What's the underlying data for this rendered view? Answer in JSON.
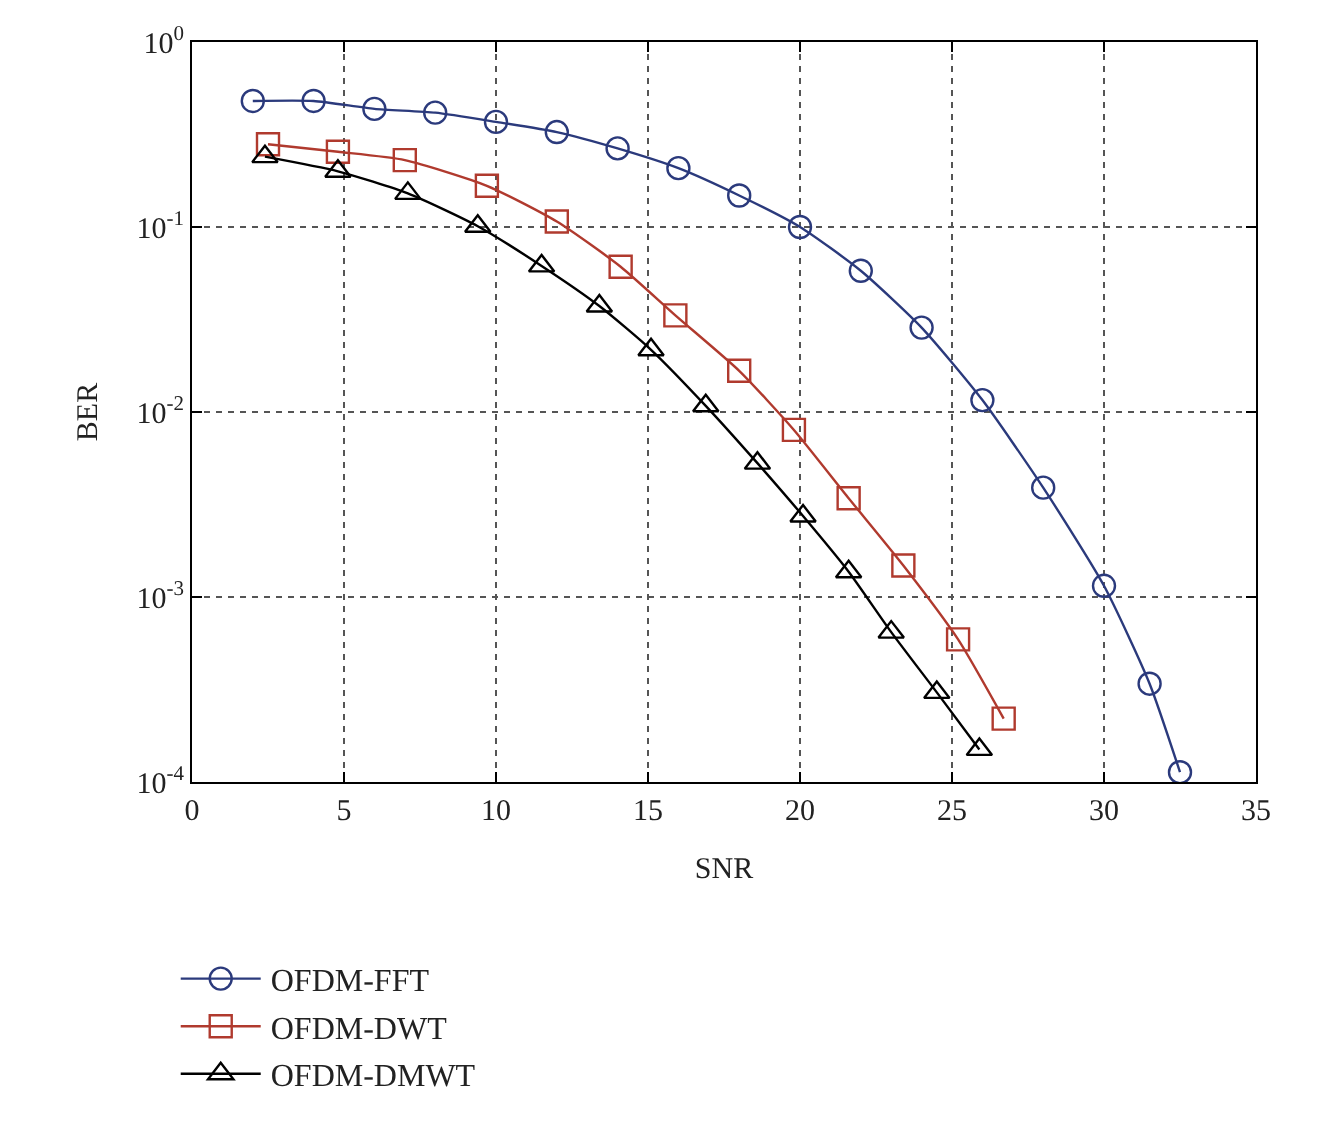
{
  "chart_data": {
    "type": "line",
    "xlabel": "SNR",
    "ylabel": "BER",
    "log": "y",
    "grid": true,
    "legend": "bottom left",
    "line_style": "solid",
    "xlim": [
      0,
      35
    ],
    "xticks": [
      0,
      5,
      10,
      15,
      20,
      25,
      30,
      35
    ],
    "ylim": [
      0.0001,
      1
    ],
    "yticks": [
      {
        "value": 0.0001,
        "label": "10$^{-4}$"
      },
      {
        "value": 0.001,
        "label": "10$^{-3}$"
      },
      {
        "value": 0.01,
        "label": "10$^{-2}$"
      },
      {
        "value": 0.1,
        "label": "10$^{-1}$"
      },
      {
        "value": 1,
        "label": "10$^{0}$"
      }
    ],
    "series": [
      {
        "name": "OFDM-FFT",
        "color": "#2b3a7c",
        "marker": "circle",
        "x": [
          2,
          4,
          6,
          8,
          10,
          12,
          14,
          16,
          18,
          20,
          22,
          24,
          26,
          28,
          30,
          31.5,
          32.5
        ],
        "values": [
          0.48,
          0.48,
          0.435,
          0.415,
          0.37,
          0.326,
          0.266,
          0.208,
          0.148,
          0.1,
          0.058,
          0.0286,
          0.0116,
          0.0039,
          0.00115,
          0.00034,
          0.000113
        ]
      },
      {
        "name": "OFDM-DWT",
        "color": "#b03a2e",
        "marker": "square",
        "x": [
          2.5,
          4.8,
          7.0,
          9.7,
          12.0,
          14.1,
          15.9,
          18.0,
          19.8,
          21.6,
          23.4,
          25.2,
          26.7
        ],
        "values": [
          0.28,
          0.255,
          0.23,
          0.167,
          0.107,
          0.061,
          0.0333,
          0.0167,
          0.008,
          0.00342,
          0.00148,
          0.00059,
          0.00022
        ]
      },
      {
        "name": "OFDM-DMWT",
        "color": "#000000",
        "marker": "triangle",
        "x": [
          2.4,
          4.8,
          7.1,
          9.4,
          11.5,
          13.4,
          15.1,
          16.9,
          18.6,
          20.1,
          21.6,
          23.0,
          24.5,
          25.9
        ],
        "values": [
          0.24,
          0.2,
          0.152,
          0.101,
          0.0616,
          0.0374,
          0.0217,
          0.0108,
          0.00529,
          0.00274,
          0.00137,
          0.000646,
          0.000305,
          0.00015
        ]
      }
    ]
  }
}
